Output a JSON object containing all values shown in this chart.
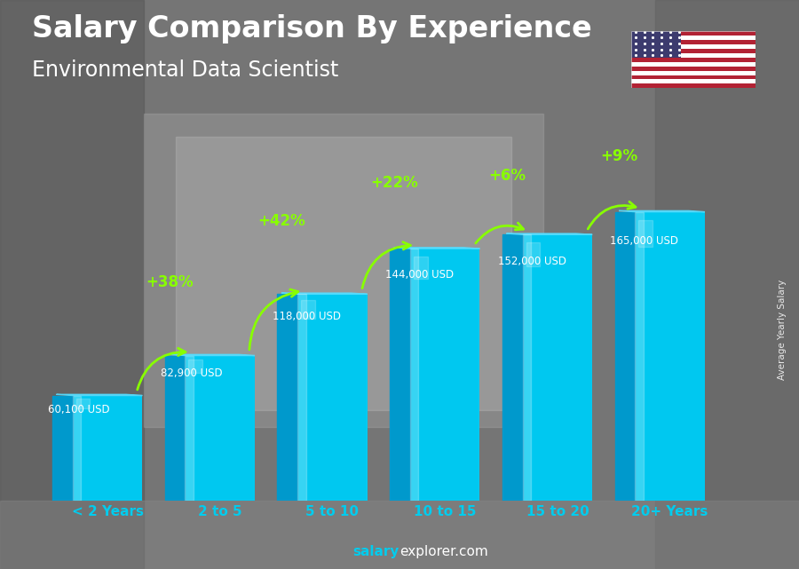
{
  "title": "Salary Comparison By Experience",
  "subtitle": "Environmental Data Scientist",
  "categories": [
    "< 2 Years",
    "2 to 5",
    "5 to 10",
    "10 to 15",
    "15 to 20",
    "20+ Years"
  ],
  "values": [
    60100,
    82900,
    118000,
    144000,
    152000,
    165000
  ],
  "value_labels": [
    "60,100 USD",
    "82,900 USD",
    "118,000 USD",
    "144,000 USD",
    "152,000 USD",
    "165,000 USD"
  ],
  "pct_changes": [
    "+38%",
    "+42%",
    "+22%",
    "+6%",
    "+9%"
  ],
  "bar_face_color": "#00c8f0",
  "bar_left_color": "#0099cc",
  "bar_top_color": "#33ddff",
  "bar_highlight": "#aaeeff",
  "bg_color": "#808080",
  "title_color": "#ffffff",
  "subtitle_color": "#ffffff",
  "value_label_color": "#ffffff",
  "pct_color": "#88ff00",
  "xlabel_color": "#00ccee",
  "ylabel_text": "Average Yearly Salary",
  "footer_salary_color": "#00ccee",
  "footer_explorer_color": "#ffffff",
  "ylim_max": 195000,
  "title_fontsize": 24,
  "subtitle_fontsize": 17,
  "bar_width": 0.62,
  "depth": 0.18
}
